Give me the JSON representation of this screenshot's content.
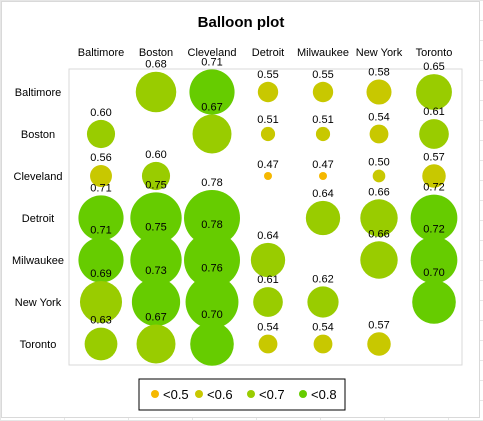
{
  "chart_data": {
    "type": "scatter",
    "subtype": "balloon",
    "title": "Balloon plot",
    "x_categories": [
      "Baltimore",
      "Boston",
      "Cleveland",
      "Detroit",
      "Milwaukee",
      "New York",
      "Toronto"
    ],
    "y_categories": [
      "Baltimore",
      "Boston",
      "Cleveland",
      "Detroit",
      "Milwaukee",
      "New York",
      "Toronto"
    ],
    "x_axis_position": "top",
    "grid": false,
    "legend_position": "bottom",
    "size_encodes": "value",
    "colors": {
      "<0.5": "#f5b800",
      "<0.6": "#c8c800",
      "<0.7": "#99cc00",
      "<0.8": "#66cc00"
    },
    "points": [
      {
        "row": "Baltimore",
        "col": "Boston",
        "value": 0.68
      },
      {
        "row": "Baltimore",
        "col": "Cleveland",
        "value": 0.71
      },
      {
        "row": "Baltimore",
        "col": "Detroit",
        "value": 0.55
      },
      {
        "row": "Baltimore",
        "col": "Milwaukee",
        "value": 0.55
      },
      {
        "row": "Baltimore",
        "col": "New York",
        "value": 0.58
      },
      {
        "row": "Baltimore",
        "col": "Toronto",
        "value": 0.65
      },
      {
        "row": "Boston",
        "col": "Baltimore",
        "value": 0.6
      },
      {
        "row": "Boston",
        "col": "Cleveland",
        "value": 0.67
      },
      {
        "row": "Boston",
        "col": "Detroit",
        "value": 0.51
      },
      {
        "row": "Boston",
        "col": "Milwaukee",
        "value": 0.51
      },
      {
        "row": "Boston",
        "col": "New York",
        "value": 0.54
      },
      {
        "row": "Boston",
        "col": "Toronto",
        "value": 0.61
      },
      {
        "row": "Cleveland",
        "col": "Baltimore",
        "value": 0.56
      },
      {
        "row": "Cleveland",
        "col": "Boston",
        "value": 0.6
      },
      {
        "row": "Cleveland",
        "col": "Detroit",
        "value": 0.47
      },
      {
        "row": "Cleveland",
        "col": "Milwaukee",
        "value": 0.47
      },
      {
        "row": "Cleveland",
        "col": "New York",
        "value": 0.5
      },
      {
        "row": "Cleveland",
        "col": "Toronto",
        "value": 0.57
      },
      {
        "row": "Detroit",
        "col": "Baltimore",
        "value": 0.71
      },
      {
        "row": "Detroit",
        "col": "Boston",
        "value": 0.75
      },
      {
        "row": "Detroit",
        "col": "Cleveland",
        "value": 0.78
      },
      {
        "row": "Detroit",
        "col": "Milwaukee",
        "value": 0.64
      },
      {
        "row": "Detroit",
        "col": "New York",
        "value": 0.66
      },
      {
        "row": "Detroit",
        "col": "Toronto",
        "value": 0.72
      },
      {
        "row": "Milwaukee",
        "col": "Baltimore",
        "value": 0.71
      },
      {
        "row": "Milwaukee",
        "col": "Boston",
        "value": 0.75
      },
      {
        "row": "Milwaukee",
        "col": "Cleveland",
        "value": 0.78
      },
      {
        "row": "Milwaukee",
        "col": "Detroit",
        "value": 0.64
      },
      {
        "row": "Milwaukee",
        "col": "New York",
        "value": 0.66
      },
      {
        "row": "Milwaukee",
        "col": "Toronto",
        "value": 0.72
      },
      {
        "row": "New York",
        "col": "Baltimore",
        "value": 0.69
      },
      {
        "row": "New York",
        "col": "Boston",
        "value": 0.73
      },
      {
        "row": "New York",
        "col": "Cleveland",
        "value": 0.76
      },
      {
        "row": "New York",
        "col": "Detroit",
        "value": 0.61
      },
      {
        "row": "New York",
        "col": "Milwaukee",
        "value": 0.62
      },
      {
        "row": "New York",
        "col": "Toronto",
        "value": 0.7
      },
      {
        "row": "Toronto",
        "col": "Baltimore",
        "value": 0.63
      },
      {
        "row": "Toronto",
        "col": "Boston",
        "value": 0.67
      },
      {
        "row": "Toronto",
        "col": "Cleveland",
        "value": 0.7
      },
      {
        "row": "Toronto",
        "col": "Detroit",
        "value": 0.54
      },
      {
        "row": "Toronto",
        "col": "Milwaukee",
        "value": 0.54
      },
      {
        "row": "Toronto",
        "col": "New York",
        "value": 0.57
      }
    ],
    "legend": [
      {
        "label": "<0.5",
        "threshold": 0.5,
        "color": "#f5b800"
      },
      {
        "label": "<0.6",
        "threshold": 0.6,
        "color": "#c8c800"
      },
      {
        "label": "<0.7",
        "threshold": 0.7,
        "color": "#99cc00"
      },
      {
        "label": "<0.8",
        "threshold": 0.8,
        "color": "#66cc00"
      }
    ]
  }
}
